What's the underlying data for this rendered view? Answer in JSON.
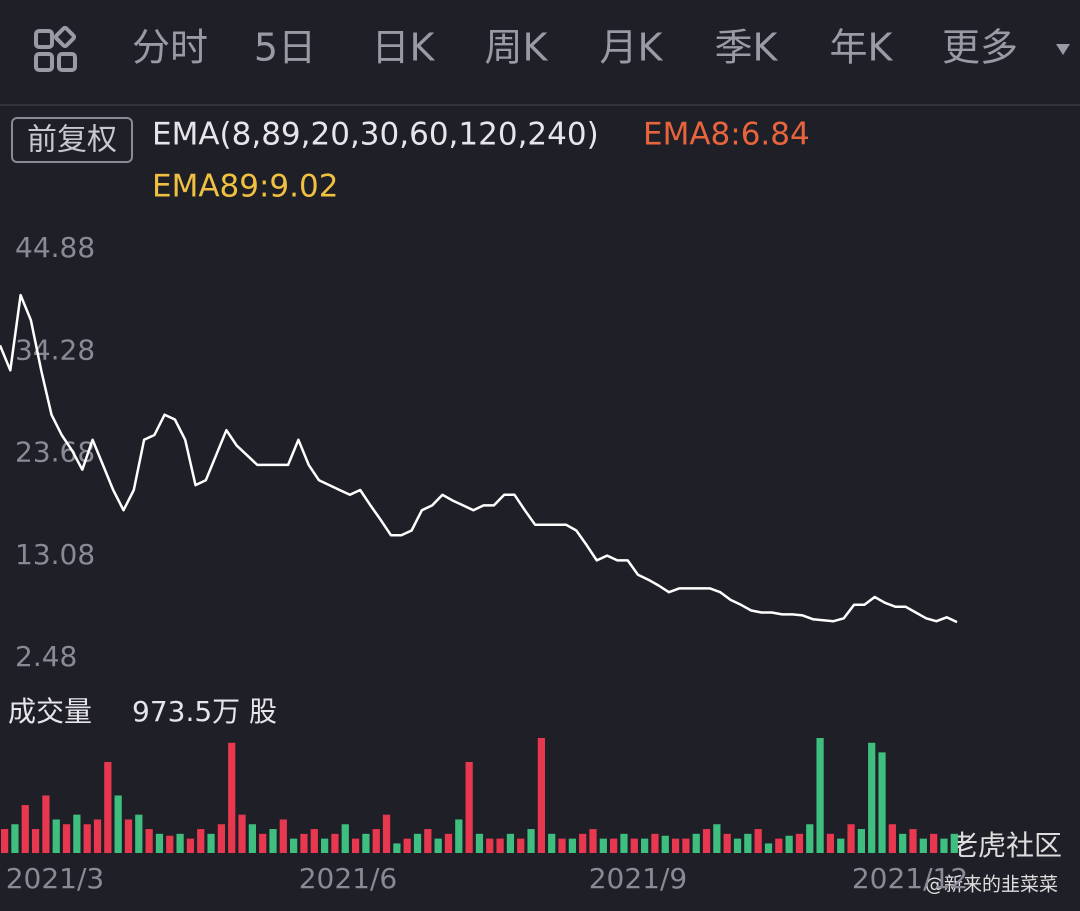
{
  "tabs": [
    "分时",
    "5日",
    "日K",
    "周K",
    "月K",
    "季K",
    "年K",
    "更多"
  ],
  "active_tab": 2,
  "adjust": "前复权",
  "ema_params": "EMA(8,89,20,30,60,120,240)",
  "ema8": "EMA8:6.84",
  "ema89": "EMA89:9.02",
  "chart_data": {
    "type": "line",
    "color": "#ffffff",
    "values": [
      34.9,
      32.3,
      40.1,
      37.5,
      32.3,
      27.7,
      25.6,
      24.0,
      22.0,
      25.1,
      22.5,
      19.9,
      17.8,
      19.9,
      25.1,
      25.6,
      27.7,
      27.2,
      25.1,
      20.4,
      20.9,
      23.5,
      26.1,
      24.5,
      23.5,
      22.5,
      22.5,
      22.5,
      22.5,
      25.1,
      22.5,
      20.9,
      20.4,
      19.9,
      19.4,
      19.9,
      18.3,
      16.8,
      15.2,
      15.2,
      15.7,
      17.8,
      18.3,
      19.4,
      18.8,
      18.3,
      17.8,
      18.3,
      18.3,
      19.4,
      19.4,
      17.8,
      16.3,
      16.3,
      16.3,
      16.3,
      15.7,
      14.2,
      12.6,
      13.1,
      12.6,
      12.6,
      11.1,
      10.6,
      10.0,
      9.3,
      9.7,
      9.7,
      9.7,
      9.7,
      9.3,
      8.5,
      8.0,
      7.4,
      7.2,
      7.2,
      7.0,
      7.0,
      6.9,
      6.5,
      6.4,
      6.3,
      6.6,
      8.0,
      8.0,
      8.8,
      8.2,
      7.8,
      7.8,
      7.2,
      6.6,
      6.3,
      6.7,
      6.2
    ],
    "ylim": [
      2.48,
      44.88
    ],
    "yticks": [
      44.88,
      34.28,
      23.68,
      13.08,
      2.48
    ],
    "x_labels": [
      "2021/3",
      "2021/6",
      "2021/9",
      "2021/12"
    ]
  },
  "volume": {
    "label": "成交量",
    "current": "973.5万 股",
    "up_color": "#e8384f",
    "down_color": "#3fbf7f",
    "values": [
      25,
      30,
      50,
      25,
      60,
      35,
      30,
      40,
      30,
      35,
      95,
      60,
      35,
      40,
      25,
      20,
      18,
      20,
      15,
      25,
      20,
      30,
      115,
      40,
      30,
      20,
      25,
      35,
      15,
      20,
      25,
      15,
      20,
      30,
      15,
      20,
      25,
      40,
      10,
      15,
      20,
      25,
      15,
      20,
      35,
      95,
      20,
      15,
      15,
      20,
      15,
      25,
      120,
      20,
      15,
      15,
      20,
      25,
      15,
      15,
      20,
      15,
      15,
      20,
      18,
      15,
      15,
      20,
      25,
      30,
      20,
      15,
      20,
      25,
      10,
      15,
      18,
      20,
      30,
      120,
      20,
      15,
      30,
      25,
      115,
      105,
      30,
      20,
      25,
      15,
      20,
      15,
      20
    ],
    "up": [
      1,
      0,
      1,
      1,
      1,
      0,
      1,
      0,
      1,
      1,
      1,
      0,
      1,
      0,
      1,
      0,
      1,
      0,
      1,
      1,
      0,
      1,
      1,
      1,
      0,
      1,
      0,
      1,
      0,
      1,
      1,
      0,
      1,
      0,
      1,
      0,
      1,
      1,
      0,
      1,
      0,
      1,
      0,
      1,
      0,
      1,
      0,
      1,
      1,
      0,
      1,
      0,
      1,
      0,
      1,
      0,
      1,
      1,
      0,
      1,
      0,
      1,
      0,
      1,
      0,
      1,
      1,
      0,
      1,
      0,
      1,
      0,
      0,
      1,
      0,
      1,
      0,
      1,
      0,
      0,
      1,
      0,
      1,
      0,
      0,
      0,
      1,
      0,
      1,
      0,
      1,
      0,
      0
    ]
  },
  "watermark": "老虎社区",
  "watermark_user": "@新来的韭菜菜"
}
